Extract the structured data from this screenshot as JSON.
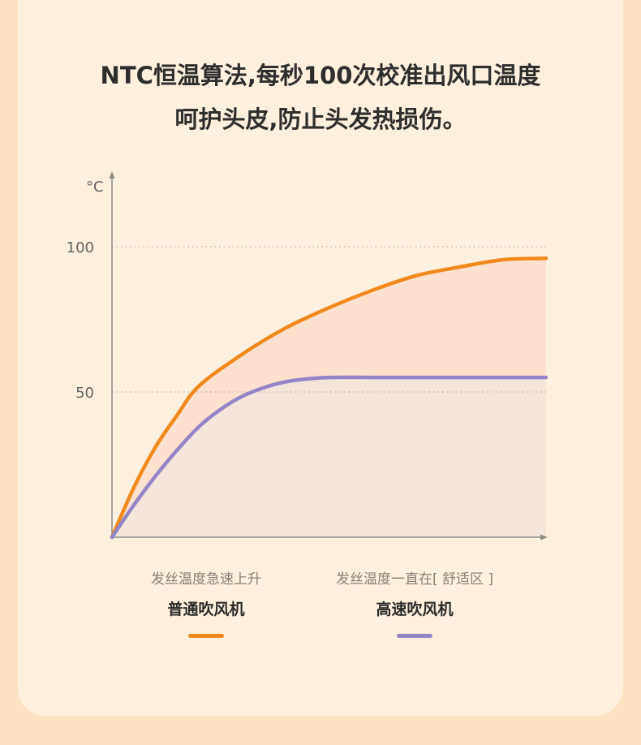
{
  "headline": {
    "line1": "NTC恒温算法,每秒100次校准出风口温度",
    "line2": "呵护头皮,防止头发热损伤。"
  },
  "chart_data": {
    "type": "line",
    "ylabel": "°C",
    "xlabel": "",
    "yticks": [
      100,
      50
    ],
    "ylim": [
      0,
      100
    ],
    "xlim": [
      0,
      10
    ],
    "grid": "dashed horizontal at y ticks",
    "series": [
      {
        "name": "普通吹风机",
        "description": "发丝温度急速上升",
        "color": "#f08a1e",
        "fill": "#fde1cf",
        "x": [
          0,
          0.5,
          1,
          1.5,
          2,
          3,
          4,
          5,
          6,
          7,
          8,
          9,
          10
        ],
        "y": [
          0,
          17,
          31,
          42,
          52,
          63,
          72,
          79,
          85,
          90,
          93,
          95.5,
          96
        ]
      },
      {
        "name": "高速吹风机",
        "description": "发丝温度一直在[ 舒适区 ]",
        "color": "#9485c6",
        "fill": "#f5e6dc",
        "x": [
          0,
          0.5,
          1,
          1.5,
          2,
          2.5,
          3,
          3.5,
          4,
          4.5,
          5,
          6,
          7,
          8,
          9,
          10
        ],
        "y": [
          0,
          11,
          21,
          30,
          38,
          44,
          48.5,
          51.5,
          53.5,
          54.5,
          55,
          55,
          55,
          55,
          55,
          55
        ]
      }
    ]
  }
}
